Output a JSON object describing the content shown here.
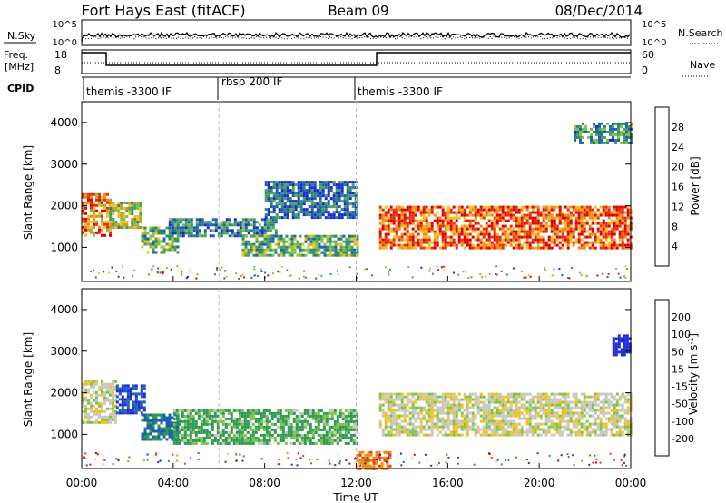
{
  "header": {
    "title": "Fort Hays East (fitACF)",
    "beam": "Beam 09",
    "date": "08/Dec/2014"
  },
  "top_panels": {
    "nsky_label": "N.Sky",
    "nsearch_label": "N.Search",
    "freq_label_1": "Freq.",
    "freq_label_2": "[MHz]",
    "nave_label": "Nave",
    "cpid_label": "CPID",
    "nsky_ticks": [
      "10^5",
      "10^0"
    ],
    "nsearch_ticks": [
      "10^5",
      "10^0"
    ],
    "freq_ticks": [
      "18",
      "8"
    ],
    "nave_ticks": [
      "60",
      "0"
    ],
    "cpid_segments": [
      {
        "label": "themis -3300 IF",
        "start_hour": 0
      },
      {
        "label": "rbsp 200 IF",
        "start_hour": 6
      },
      {
        "label": "themis -3300 IF",
        "start_hour": 12
      }
    ]
  },
  "chart_data": [
    {
      "type": "heatmap",
      "title": "Power",
      "xlabel": "",
      "ylabel": "Slant Range [km]",
      "xlim": [
        "00:00",
        "24:00"
      ],
      "ylim": [
        180,
        4500
      ],
      "yticks": [
        "1000",
        "2000",
        "3000",
        "4000"
      ],
      "colorbar": {
        "label": "Power [dB]",
        "ticks": [
          "4",
          "8",
          "12",
          "16",
          "20",
          "24",
          "28"
        ],
        "range": [
          0,
          30
        ]
      },
      "regions": [
        {
          "hours": [
            0,
            1.2
          ],
          "range_km": [
            1300,
            2300
          ],
          "level_db": 22
        },
        {
          "hours": [
            1.2,
            2.6
          ],
          "range_km": [
            1500,
            2100
          ],
          "level_db": 16
        },
        {
          "hours": [
            2.6,
            4.2
          ],
          "range_km": [
            900,
            1500
          ],
          "level_db": 12
        },
        {
          "hours": [
            3.8,
            8.5
          ],
          "range_km": [
            1300,
            1700
          ],
          "level_db": 8
        },
        {
          "hours": [
            7,
            12
          ],
          "range_km": [
            800,
            1300
          ],
          "level_db": 12
        },
        {
          "hours": [
            8,
            12
          ],
          "range_km": [
            1700,
            2600
          ],
          "level_db": 6
        },
        {
          "hours": [
            13,
            24
          ],
          "range_km": [
            1000,
            2000
          ],
          "level_db": 24
        },
        {
          "hours": [
            21.5,
            24
          ],
          "range_km": [
            3500,
            4000
          ],
          "level_db": 10
        }
      ]
    },
    {
      "type": "heatmap",
      "title": "Velocity",
      "xlabel": "Time UT",
      "ylabel": "Slant Range [km]",
      "xlim": [
        "00:00",
        "24:00"
      ],
      "ylim": [
        180,
        4500
      ],
      "xticks": [
        "00:00",
        "04:00",
        "08:00",
        "12:00",
        "16:00",
        "20:00",
        "00:00"
      ],
      "yticks": [
        "1000",
        "2000",
        "3000",
        "4000"
      ],
      "colorbar": {
        "label": "Velocity [m s^-1]",
        "ticks": [
          "200",
          "100",
          "50",
          "15",
          "-15",
          "-50",
          "-100",
          "-200"
        ],
        "range": [
          -250,
          250
        ]
      },
      "regions": [
        {
          "hours": [
            0,
            1.5
          ],
          "range_km": [
            1300,
            2300
          ],
          "velocity": 0
        },
        {
          "hours": [
            1.5,
            2.8
          ],
          "range_km": [
            1500,
            2200
          ],
          "velocity": 150
        },
        {
          "hours": [
            2.6,
            4.2
          ],
          "range_km": [
            900,
            1500
          ],
          "velocity": 80
        },
        {
          "hours": [
            4,
            12
          ],
          "range_km": [
            800,
            1600
          ],
          "velocity": 40
        },
        {
          "hours": [
            12,
            13.5
          ],
          "range_km": [
            200,
            600
          ],
          "velocity": -60
        },
        {
          "hours": [
            13,
            24
          ],
          "range_km": [
            1000,
            2000
          ],
          "velocity": 0
        },
        {
          "hours": [
            23.2,
            24
          ],
          "range_km": [
            2900,
            3400
          ],
          "velocity": 220
        }
      ]
    }
  ]
}
